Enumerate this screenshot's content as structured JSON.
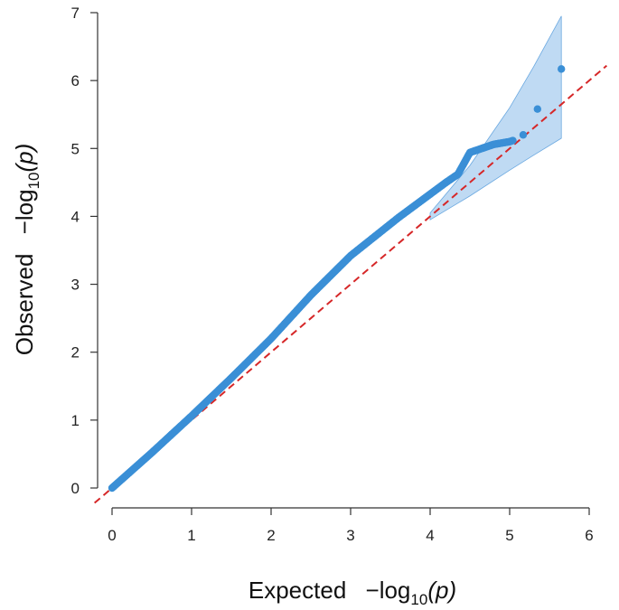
{
  "chart_data": {
    "type": "scatter",
    "title": "",
    "xlabel": {
      "prefix": "Expected",
      "neg_log": "−log",
      "base": "10",
      "var": "(p)"
    },
    "ylabel": {
      "prefix": "Observed",
      "neg_log": "−log",
      "base": "10",
      "var": "(p)"
    },
    "xlim": [
      0,
      6
    ],
    "ylim": [
      0,
      7
    ],
    "xticks": [
      "0",
      "1",
      "2",
      "3",
      "4",
      "5",
      "6"
    ],
    "yticks": [
      "0",
      "1",
      "2",
      "3",
      "4",
      "5",
      "6",
      "7"
    ],
    "grid": false,
    "legend": "none",
    "colors": {
      "points": "#3a8fd6",
      "band": "#a9cdef",
      "band_edge": "#6aa8e0",
      "reference": "#d62728",
      "axis": "#333333"
    },
    "reference_line": {
      "slope": 1,
      "intercept": 0,
      "style": "dashed"
    },
    "confidence_band": {
      "x": [
        4.0,
        4.5,
        5.0,
        5.3,
        5.65
      ],
      "lower": [
        3.95,
        4.3,
        4.68,
        4.9,
        5.15
      ],
      "upper": [
        4.05,
        4.75,
        5.6,
        6.2,
        6.95
      ]
    },
    "qq_curve": {
      "x": [
        0,
        0.5,
        1.0,
        1.5,
        2.0,
        2.5,
        3.0,
        3.3,
        3.6,
        3.9,
        4.2,
        4.35,
        4.5,
        4.8,
        5.0,
        5.05
      ],
      "y": [
        0,
        0.52,
        1.06,
        1.62,
        2.2,
        2.84,
        3.42,
        3.7,
        3.98,
        4.24,
        4.5,
        4.62,
        4.94,
        5.06,
        5.1,
        5.12
      ]
    },
    "outliers": {
      "x": [
        5.17,
        5.35,
        5.65
      ],
      "y": [
        5.2,
        5.58,
        6.17
      ]
    }
  }
}
